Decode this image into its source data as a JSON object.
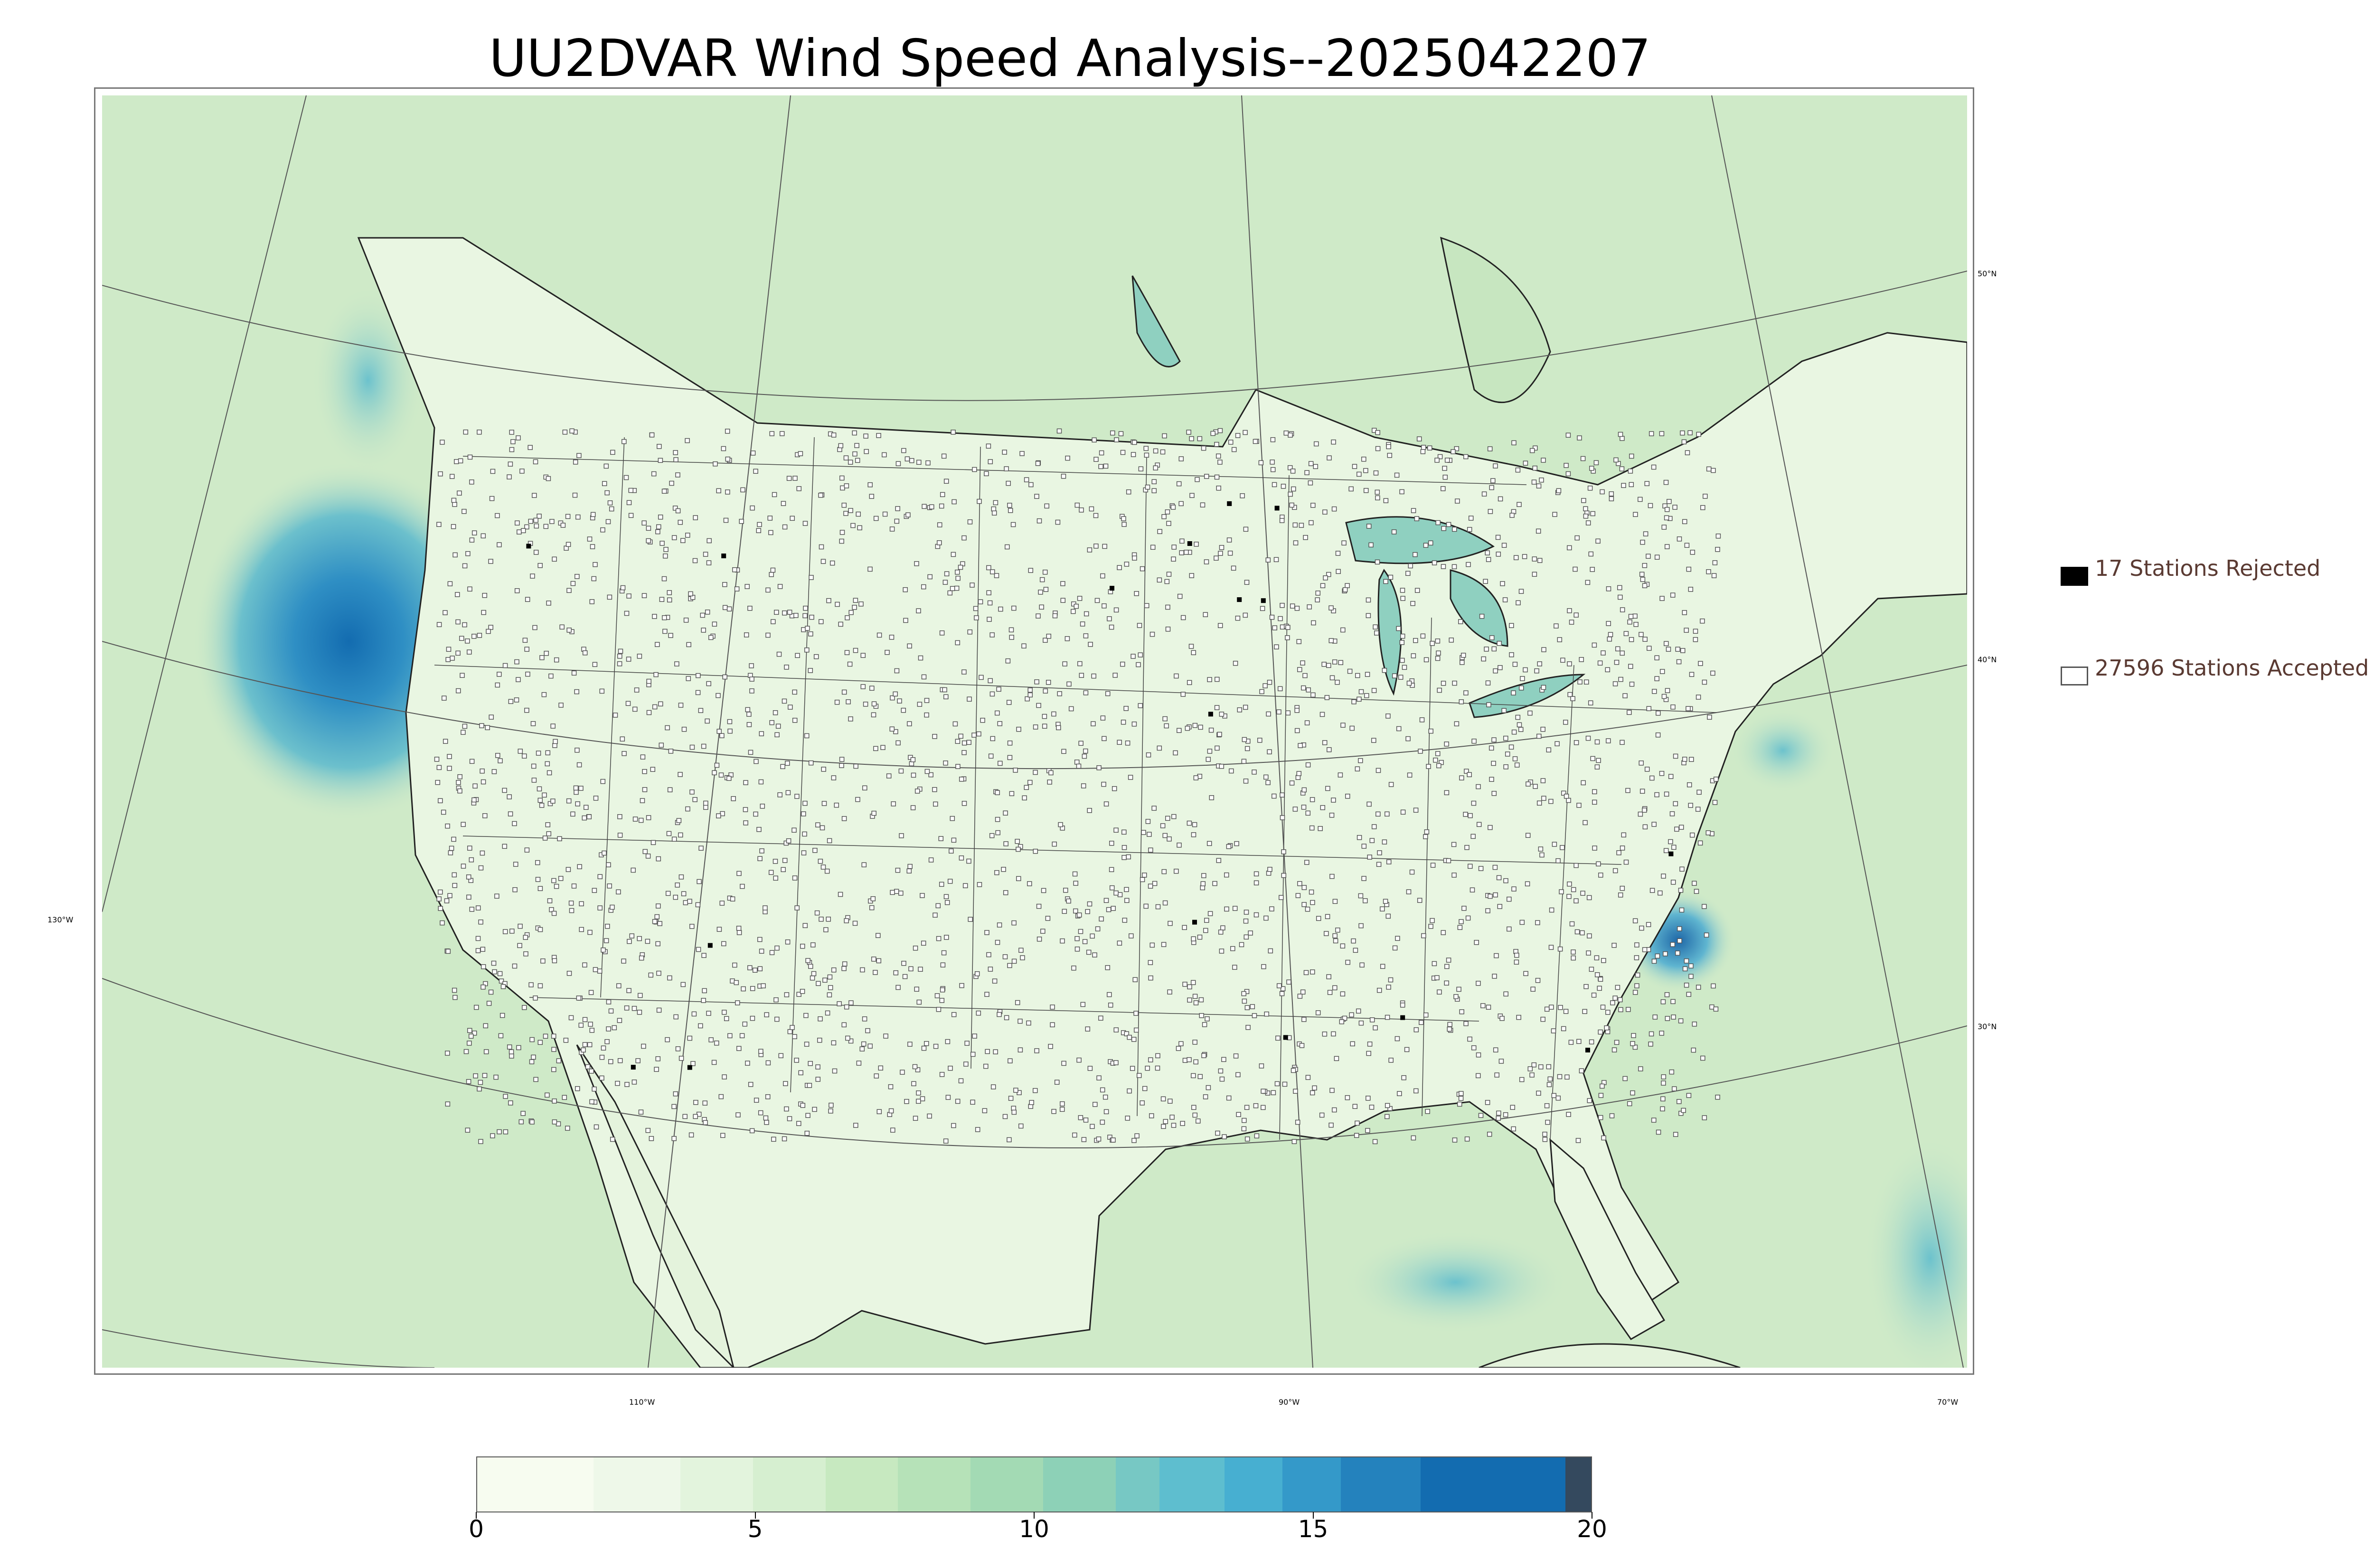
{
  "title": "UU2DVAR Wind Speed Analysis--2025042207",
  "legend": {
    "rejected_label": "17 Stations Rejected",
    "accepted_label": "27596 Stations Accepted",
    "rejected_count": 17,
    "accepted_count": 27596,
    "rejected_marker_color": "#000000",
    "accepted_marker_color": "#ffffff"
  },
  "graticule_labels": {
    "lat_50": "50°N",
    "lat_40": "40°N",
    "lat_30": "30°N",
    "lon_130": "130°W",
    "lon_110": "110°W",
    "lon_90": "90°W",
    "lon_70": "70°W"
  },
  "colorbar": {
    "min": 0,
    "max": 20,
    "ticks": [
      "0",
      "5",
      "10",
      "15",
      "20"
    ],
    "colors": [
      "#f7fcf0",
      "#eef8e9",
      "#e3f4dd",
      "#d6efd0",
      "#c7e9c0",
      "#b6e2b8",
      "#a3dab4",
      "#8dd1b7",
      "#77c8c4",
      "#5ebecf",
      "#47afd1",
      "#3499c9",
      "#2482bd",
      "#136cb0",
      "#34495e"
    ]
  },
  "map": {
    "land_color": "#e8f5e0",
    "ocean_color": "#cfe9c7",
    "strong_wind_color": "#2a7fc0",
    "boundary_color": "#222222"
  }
}
